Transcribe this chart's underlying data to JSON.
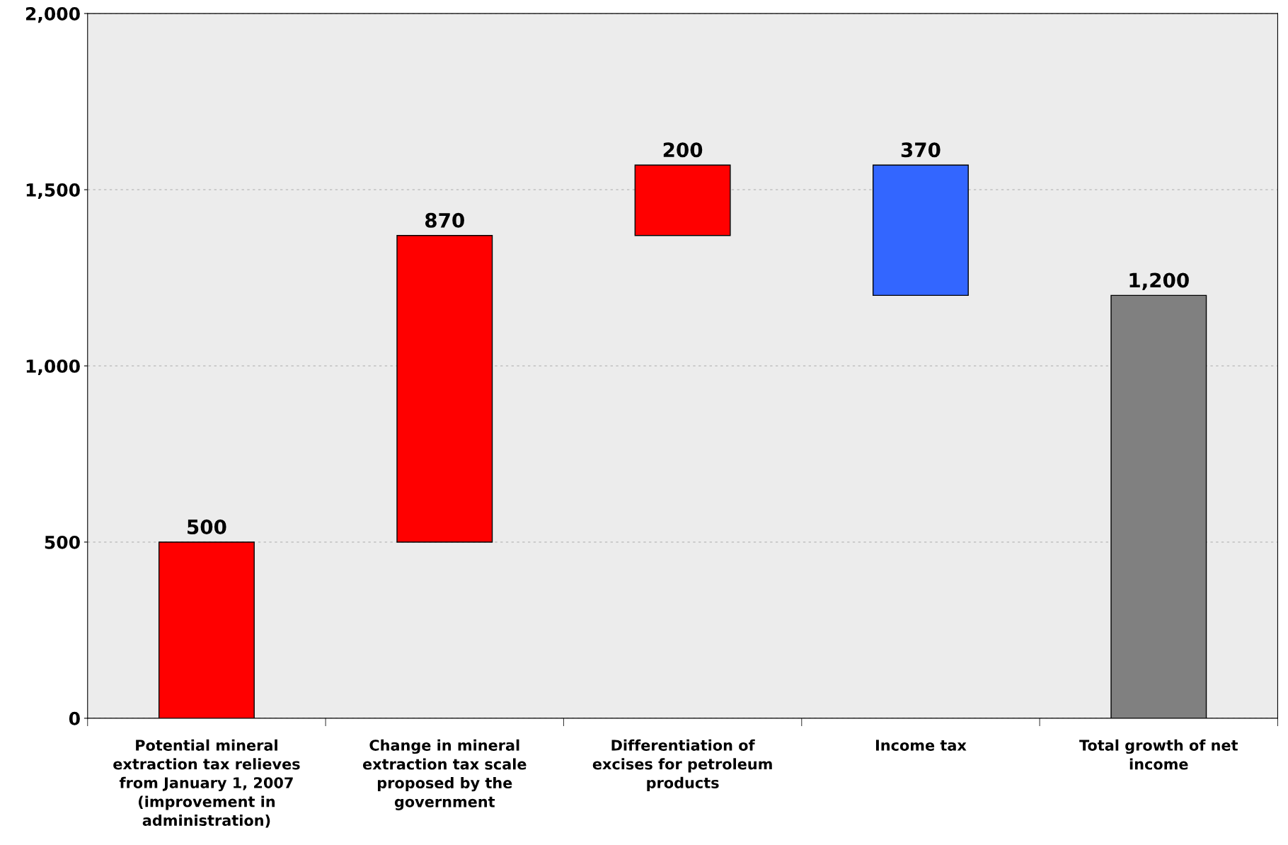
{
  "chart_data": {
    "type": "bar",
    "categories": [
      "Potential mineral extraction tax relieves from January 1, 2007 (improvement in administration)",
      "Change in mineral extraction tax scale proposed by the government",
      "Differentiation of excises for petroleum products",
      "Income tax",
      "Total growth of net income"
    ],
    "values": [
      500,
      870,
      200,
      370,
      1200
    ],
    "base": [
      0,
      500,
      1370,
      1200,
      0
    ],
    "colors": [
      "#ff0000",
      "#ff0000",
      "#ff0000",
      "#3366ff",
      "#808080"
    ],
    "value_labels": [
      "500",
      "870",
      "200",
      "370",
      "1,200"
    ],
    "ylim": [
      0,
      2000
    ],
    "yticks": [
      0,
      500,
      {
        "value": 1000,
        "label": "1,000"
      },
      {
        "value": 1500,
        "label": "1,500"
      },
      {
        "value": 2000,
        "label": "2,000"
      }
    ],
    "grid": "y"
  }
}
